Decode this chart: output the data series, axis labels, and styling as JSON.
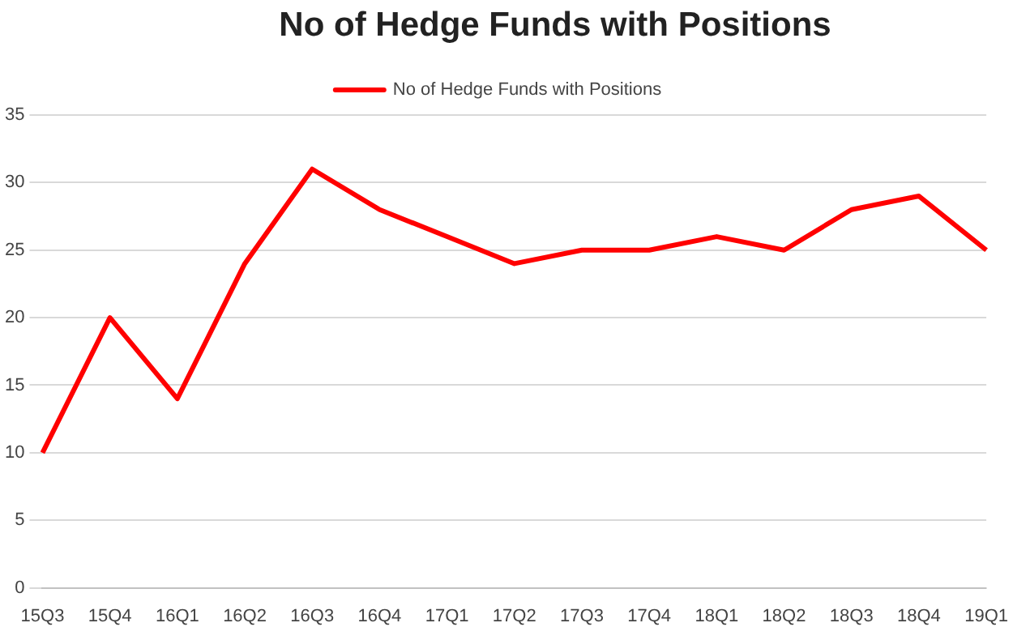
{
  "chart_data": {
    "type": "line",
    "title": "No of Hedge Funds with Positions",
    "categories": [
      "15Q3",
      "15Q4",
      "16Q1",
      "16Q2",
      "16Q3",
      "16Q4",
      "17Q1",
      "17Q2",
      "17Q3",
      "17Q4",
      "18Q1",
      "18Q2",
      "18Q3",
      "18Q4",
      "19Q1"
    ],
    "series": [
      {
        "name": "No of Hedge Funds with Positions",
        "color": "#ff0000",
        "values": [
          10,
          20,
          14,
          24,
          31,
          28,
          26,
          24,
          25,
          25,
          26,
          25,
          28,
          29,
          25
        ]
      }
    ],
    "ylim": [
      0,
      35
    ],
    "yticks": [
      0,
      5,
      10,
      15,
      20,
      25,
      30,
      35
    ],
    "grid": "y",
    "legend": "top",
    "marker": "none"
  }
}
